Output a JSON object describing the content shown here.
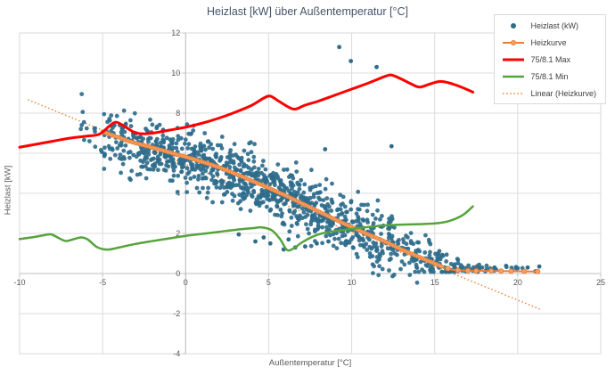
{
  "chart_data": {
    "type": "scatter",
    "title": "Heizlast [kW] über Außentemperatur [°C]",
    "xlabel": "Außentemperatur [°C]",
    "ylabel": "Heizlast [kW]",
    "xlim": [
      -10,
      25
    ],
    "ylim": [
      -4,
      12
    ],
    "x_ticks": [
      -10,
      -5,
      0,
      5,
      10,
      15,
      20,
      25
    ],
    "y_ticks": [
      -4,
      -2,
      0,
      2,
      4,
      6,
      8,
      10,
      12
    ],
    "grid": true,
    "legend_position": "top-right",
    "colors": {
      "grid": "#dcdcdc",
      "axis": "#bfbfbf",
      "tick_text": "#595959",
      "title_text": "#44546A",
      "scatter": "#2E6C8C",
      "heizkurve": "#ED7D31",
      "heizkurve_marker_fill": "#F2A169",
      "max_line": "#FF0000",
      "min_line": "#56A33C",
      "linear": "#ED7D31",
      "background": "#ffffff"
    },
    "series": [
      {
        "name": "Heizlast (kW)",
        "type": "scatter",
        "marker_r": 2.4,
        "points_note": "dense measurement cloud, ~1100 pts, sampled around Heizkurve trend",
        "sampling": {
          "seed": 20240917,
          "noise_sd": 0.72,
          "sd_taper_start": 13,
          "sd_taper_end": 17,
          "sd_min": 0.12,
          "bias_below_zero": -0.2,
          "bias_right": 0.12,
          "bins": [
            [
              -6.6,
              -5,
              14
            ],
            [
              -5,
              -4,
              30
            ],
            [
              -4,
              -3,
              42
            ],
            [
              -3,
              -2,
              50
            ],
            [
              -2,
              -1,
              55
            ],
            [
              -1,
              0,
              58
            ],
            [
              0,
              1,
              60
            ],
            [
              1,
              2,
              62
            ],
            [
              2,
              3,
              65
            ],
            [
              3,
              4,
              65
            ],
            [
              4,
              5,
              68
            ],
            [
              5,
              6,
              68
            ],
            [
              6,
              7,
              65
            ],
            [
              7,
              8,
              62
            ],
            [
              8,
              9,
              58
            ],
            [
              9,
              10,
              55
            ],
            [
              10,
              11,
              50
            ],
            [
              11,
              12,
              46
            ],
            [
              12,
              13,
              42
            ],
            [
              13,
              14,
              36
            ],
            [
              14,
              15,
              30
            ],
            [
              15,
              16,
              26
            ],
            [
              16,
              17,
              20
            ],
            [
              17,
              18,
              12
            ],
            [
              18,
              19,
              7
            ],
            [
              19,
              20,
              4
            ],
            [
              20,
              21.3,
              3
            ]
          ]
        },
        "explicit_points": [
          [
            9.25,
            11.3
          ],
          [
            9.95,
            10.6
          ],
          [
            11.5,
            10.3
          ],
          [
            8.4,
            6.2
          ],
          [
            12.4,
            6.35
          ],
          [
            3.2,
            1.95
          ],
          [
            4.2,
            1.6
          ],
          [
            5.1,
            1.5
          ],
          [
            5.9,
            1.2
          ],
          [
            6.6,
            1.3
          ],
          [
            7.2,
            1.35
          ],
          [
            7.9,
            1.5
          ],
          [
            8.6,
            1.6
          ],
          [
            4.7,
            1.8
          ],
          [
            6.2,
            1.7
          ],
          [
            18.6,
            0.3
          ],
          [
            19.3,
            0.38
          ],
          [
            19.9,
            0.32
          ],
          [
            20.6,
            0.3
          ],
          [
            21.3,
            0.35
          ]
        ]
      },
      {
        "name": "Heizkurve",
        "type": "line-markers",
        "width": 2,
        "marker_band": {
          "from": -5,
          "to": 15.4,
          "step": 0.12,
          "r": 2.0
        },
        "tail_markers": [
          15.8,
          16.4,
          17.0,
          17.5,
          18.4,
          19.0,
          19.6,
          20.4,
          21.2
        ],
        "points": [
          [
            -5,
            7.08
          ],
          [
            -4.5,
            6.92
          ],
          [
            -4,
            6.78
          ],
          [
            -3.5,
            6.62
          ],
          [
            -3,
            6.5
          ],
          [
            -2.5,
            6.4
          ],
          [
            -2,
            6.28
          ],
          [
            -1.5,
            6.17
          ],
          [
            -1,
            6.05
          ],
          [
            -0.5,
            5.93
          ],
          [
            0,
            5.82
          ],
          [
            0.5,
            5.7
          ],
          [
            1,
            5.57
          ],
          [
            1.5,
            5.44
          ],
          [
            2,
            5.3
          ],
          [
            2.5,
            5.14
          ],
          [
            3,
            4.97
          ],
          [
            3.5,
            4.8
          ],
          [
            4,
            4.62
          ],
          [
            4.5,
            4.45
          ],
          [
            5,
            4.27
          ],
          [
            5.5,
            4.08
          ],
          [
            6,
            3.9
          ],
          [
            6.5,
            3.7
          ],
          [
            7,
            3.5
          ],
          [
            7.5,
            3.3
          ],
          [
            8,
            3.1
          ],
          [
            8.5,
            2.9
          ],
          [
            9,
            2.7
          ],
          [
            9.5,
            2.5
          ],
          [
            10,
            2.32
          ],
          [
            10.5,
            2.13
          ],
          [
            11,
            1.95
          ],
          [
            11.5,
            1.77
          ],
          [
            12,
            1.6
          ],
          [
            12.5,
            1.4
          ],
          [
            13,
            1.2
          ],
          [
            13.5,
            1.02
          ],
          [
            14,
            0.85
          ],
          [
            14.5,
            0.67
          ],
          [
            15,
            0.5
          ],
          [
            15.5,
            0.32
          ],
          [
            16,
            0.2
          ],
          [
            16.5,
            0.16
          ],
          [
            17,
            0.14
          ],
          [
            18,
            0.13
          ],
          [
            19,
            0.12
          ],
          [
            20,
            0.11
          ],
          [
            21.2,
            0.1
          ]
        ]
      },
      {
        "name": "75/8.1 Max",
        "type": "line",
        "width": 3,
        "points": [
          [
            -10,
            6.3
          ],
          [
            -9,
            6.45
          ],
          [
            -8,
            6.6
          ],
          [
            -7,
            6.75
          ],
          [
            -6,
            6.85
          ],
          [
            -5.2,
            6.95
          ],
          [
            -4.6,
            7.35
          ],
          [
            -4.2,
            7.55
          ],
          [
            -3.7,
            7.35
          ],
          [
            -3.1,
            7.05
          ],
          [
            -2.6,
            6.97
          ],
          [
            -2,
            7.0
          ],
          [
            -1,
            7.15
          ],
          [
            0,
            7.3
          ],
          [
            1,
            7.5
          ],
          [
            2,
            7.75
          ],
          [
            3,
            8.05
          ],
          [
            4,
            8.4
          ],
          [
            4.7,
            8.75
          ],
          [
            5.1,
            8.85
          ],
          [
            5.6,
            8.6
          ],
          [
            6.2,
            8.3
          ],
          [
            6.6,
            8.2
          ],
          [
            7.2,
            8.4
          ],
          [
            8,
            8.6
          ],
          [
            9,
            8.9
          ],
          [
            10,
            9.2
          ],
          [
            11,
            9.5
          ],
          [
            12,
            9.83
          ],
          [
            12.4,
            9.9
          ],
          [
            13,
            9.7
          ],
          [
            13.6,
            9.45
          ],
          [
            14.1,
            9.3
          ],
          [
            14.7,
            9.45
          ],
          [
            15.3,
            9.58
          ],
          [
            15.9,
            9.5
          ],
          [
            16.6,
            9.3
          ],
          [
            17.3,
            9.05
          ]
        ]
      },
      {
        "name": "75/8.1 Min",
        "type": "line",
        "width": 2.5,
        "points": [
          [
            -10,
            1.72
          ],
          [
            -9.3,
            1.8
          ],
          [
            -8.6,
            1.9
          ],
          [
            -8.1,
            1.95
          ],
          [
            -7.6,
            1.75
          ],
          [
            -7.2,
            1.62
          ],
          [
            -6.8,
            1.7
          ],
          [
            -6.3,
            1.8
          ],
          [
            -5.9,
            1.7
          ],
          [
            -5.4,
            1.35
          ],
          [
            -5,
            1.22
          ],
          [
            -4.6,
            1.2
          ],
          [
            -4,
            1.3
          ],
          [
            -3,
            1.48
          ],
          [
            -2,
            1.62
          ],
          [
            -1,
            1.75
          ],
          [
            0,
            1.88
          ],
          [
            1,
            1.98
          ],
          [
            2,
            2.08
          ],
          [
            3,
            2.18
          ],
          [
            4,
            2.26
          ],
          [
            4.6,
            2.3
          ],
          [
            5.2,
            2.15
          ],
          [
            5.7,
            1.7
          ],
          [
            6.1,
            1.18
          ],
          [
            6.5,
            1.25
          ],
          [
            7,
            1.55
          ],
          [
            7.6,
            1.82
          ],
          [
            8.2,
            2.0
          ],
          [
            9,
            2.12
          ],
          [
            10,
            2.22
          ],
          [
            11,
            2.32
          ],
          [
            12,
            2.4
          ],
          [
            13,
            2.44
          ],
          [
            14,
            2.46
          ],
          [
            15,
            2.5
          ],
          [
            15.7,
            2.58
          ],
          [
            16.3,
            2.75
          ],
          [
            16.8,
            2.98
          ],
          [
            17.3,
            3.35
          ]
        ]
      },
      {
        "name": "Linear (Heizkurve)",
        "type": "dotted-line",
        "width": 1.4,
        "points": [
          [
            -9.5,
            8.67
          ],
          [
            21.4,
            -1.8
          ]
        ]
      }
    ]
  }
}
